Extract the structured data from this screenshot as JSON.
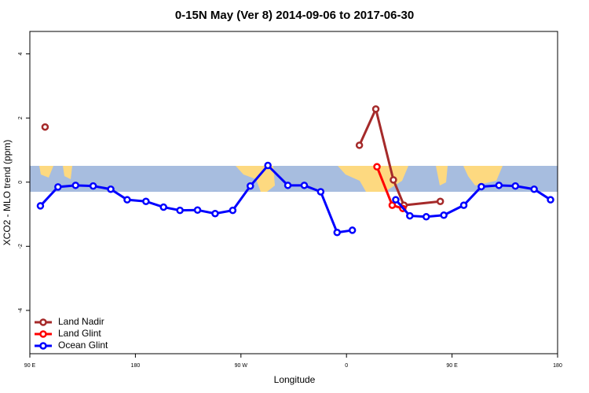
{
  "chart_data": {
    "type": "line",
    "title": "0-15N May (Ver 8)   2014-09-06 to 2017-06-30",
    "x_label": "Longitude",
    "y_label": "XCO2 - MLO trend (ppm)",
    "xlim": [
      90,
      540
    ],
    "xticks": [
      {
        "value": 90,
        "label": "90 E"
      },
      180,
      {
        "value": 270,
        "label": "90 W"
      },
      {
        "value": 360,
        "label": "0"
      },
      {
        "value": 450,
        "label": "90 E"
      },
      {
        "value": 540,
        "label": "180"
      }
    ],
    "ylim": [
      -5.35,
      4.7
    ],
    "yticks": [
      -4,
      -2,
      0,
      2,
      4
    ],
    "legend": "bottom-left",
    "series": [
      {
        "name": "Land Nadir",
        "color": "#a52a2a",
        "x": [
          103,
          351,
          371,
          385,
          400,
          409,
          440,
          463
        ],
        "values": [
          1.72,
          null,
          1.15,
          2.28,
          0.07,
          -0.72,
          -0.6,
          null
        ]
      },
      {
        "name": "Land Glint",
        "color": "#ff0000",
        "x": [
          386,
          399,
          408,
          440
        ],
        "values": [
          0.48,
          -0.72,
          -0.82,
          null
        ]
      },
      {
        "name": "Ocean Glint",
        "color": "#0000ff",
        "x": [
          99,
          114,
          129,
          144,
          159,
          173,
          189,
          204,
          218,
          233,
          248,
          263,
          278,
          293,
          310,
          324,
          338,
          352,
          365,
          383,
          402,
          414,
          428,
          443,
          460,
          475,
          490,
          504,
          520,
          534
        ],
        "values": [
          -0.74,
          -0.15,
          -0.1,
          -0.12,
          -0.22,
          -0.55,
          -0.6,
          -0.78,
          -0.88,
          -0.87,
          -0.98,
          -0.88,
          -0.12,
          0.52,
          -0.1,
          -0.1,
          -0.3,
          -1.57,
          -1.5,
          null,
          -0.55,
          -1.05,
          -1.08,
          -1.03,
          -0.72,
          -0.14,
          -0.1,
          -0.12,
          -0.22,
          -0.55
        ]
      }
    ]
  }
}
